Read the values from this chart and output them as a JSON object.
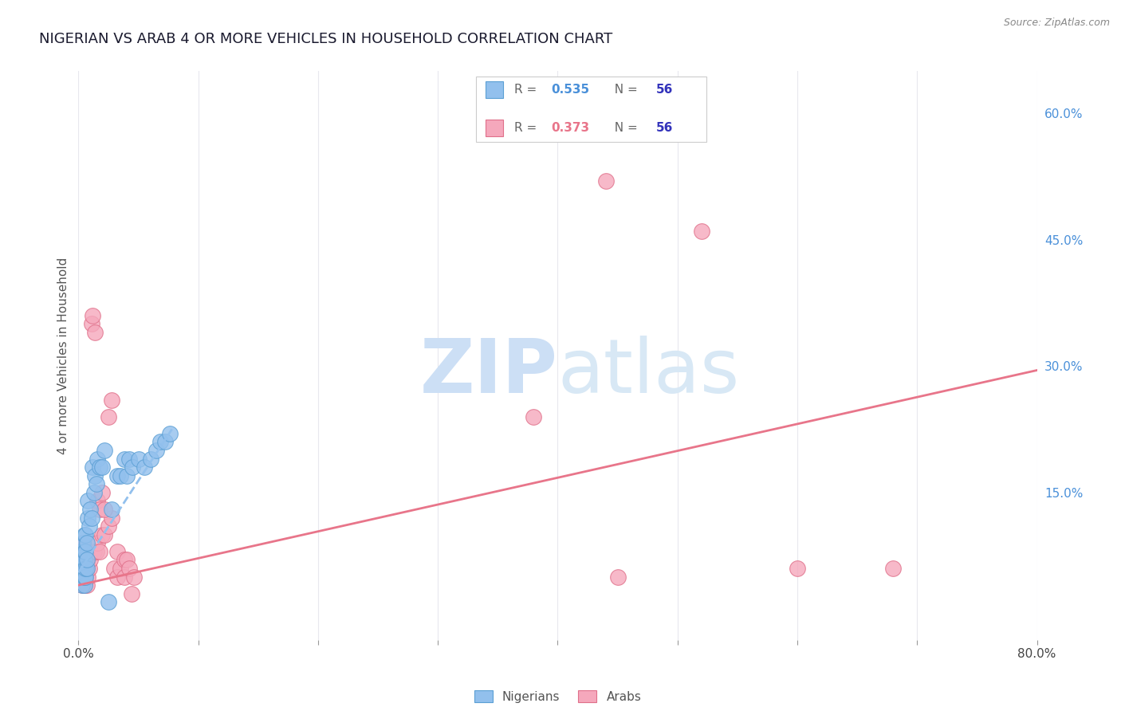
{
  "title": "NIGERIAN VS ARAB 4 OR MORE VEHICLES IN HOUSEHOLD CORRELATION CHART",
  "source": "Source: ZipAtlas.com",
  "ylabel": "4 or more Vehicles in Household",
  "yticks_right": [
    "60.0%",
    "45.0%",
    "30.0%",
    "15.0%"
  ],
  "yticks_right_vals": [
    0.6,
    0.45,
    0.3,
    0.15
  ],
  "nigerian_color": "#92c0ed",
  "nigerian_edge_color": "#5b9fd4",
  "arab_color": "#f5a8bc",
  "arab_edge_color": "#e0708a",
  "nigerian_line_color": "#92c0ed",
  "arab_line_color": "#e8758a",
  "xmin": 0.0,
  "xmax": 0.8,
  "ymin": -0.025,
  "ymax": 0.65,
  "nigerian_scatter_x": [
    0.001,
    0.001,
    0.001,
    0.002,
    0.002,
    0.002,
    0.002,
    0.003,
    0.003,
    0.003,
    0.003,
    0.003,
    0.004,
    0.004,
    0.004,
    0.004,
    0.005,
    0.005,
    0.005,
    0.005,
    0.005,
    0.006,
    0.006,
    0.006,
    0.006,
    0.007,
    0.007,
    0.007,
    0.008,
    0.008,
    0.009,
    0.01,
    0.011,
    0.012,
    0.013,
    0.014,
    0.015,
    0.016,
    0.018,
    0.02,
    0.022,
    0.025,
    0.028,
    0.032,
    0.035,
    0.038,
    0.04,
    0.042,
    0.045,
    0.05,
    0.055,
    0.06,
    0.065,
    0.068,
    0.072,
    0.076
  ],
  "nigerian_scatter_y": [
    0.05,
    0.06,
    0.07,
    0.05,
    0.06,
    0.07,
    0.08,
    0.04,
    0.05,
    0.06,
    0.07,
    0.08,
    0.05,
    0.06,
    0.07,
    0.09,
    0.04,
    0.05,
    0.07,
    0.08,
    0.1,
    0.05,
    0.06,
    0.08,
    0.1,
    0.06,
    0.07,
    0.09,
    0.12,
    0.14,
    0.11,
    0.13,
    0.12,
    0.18,
    0.15,
    0.17,
    0.16,
    0.19,
    0.18,
    0.18,
    0.2,
    0.02,
    0.13,
    0.17,
    0.17,
    0.19,
    0.17,
    0.19,
    0.18,
    0.19,
    0.18,
    0.19,
    0.2,
    0.21,
    0.21,
    0.22
  ],
  "arab_scatter_x": [
    0.001,
    0.001,
    0.001,
    0.002,
    0.002,
    0.002,
    0.003,
    0.003,
    0.003,
    0.004,
    0.004,
    0.004,
    0.005,
    0.005,
    0.005,
    0.006,
    0.006,
    0.007,
    0.007,
    0.008,
    0.008,
    0.009,
    0.01,
    0.011,
    0.012,
    0.013,
    0.014,
    0.015,
    0.016,
    0.018,
    0.02,
    0.022,
    0.025,
    0.028,
    0.03,
    0.032,
    0.016,
    0.018,
    0.02,
    0.022,
    0.025,
    0.028,
    0.032,
    0.035,
    0.038,
    0.038,
    0.04,
    0.042,
    0.044,
    0.046,
    0.38,
    0.44,
    0.45,
    0.52,
    0.6,
    0.68
  ],
  "arab_scatter_y": [
    0.05,
    0.06,
    0.07,
    0.05,
    0.06,
    0.07,
    0.04,
    0.06,
    0.08,
    0.05,
    0.07,
    0.09,
    0.04,
    0.06,
    0.08,
    0.05,
    0.07,
    0.04,
    0.06,
    0.05,
    0.07,
    0.06,
    0.07,
    0.35,
    0.36,
    0.08,
    0.34,
    0.08,
    0.09,
    0.08,
    0.1,
    0.1,
    0.11,
    0.12,
    0.06,
    0.08,
    0.14,
    0.13,
    0.15,
    0.13,
    0.24,
    0.26,
    0.05,
    0.06,
    0.05,
    0.07,
    0.07,
    0.06,
    0.03,
    0.05,
    0.24,
    0.52,
    0.05,
    0.46,
    0.06,
    0.06
  ],
  "nigerian_line_x": [
    0.0,
    0.078
  ],
  "nigerian_line_y": [
    0.055,
    0.225
  ],
  "arab_line_x": [
    0.0,
    0.8
  ],
  "arab_line_y": [
    0.04,
    0.295
  ],
  "xtick_vals": [
    0.0,
    0.1,
    0.2,
    0.3,
    0.4,
    0.5,
    0.6,
    0.7,
    0.8
  ],
  "xtick_show": [
    "0.0%",
    "",
    "",
    "",
    "",
    "",
    "",
    "",
    "80.0%"
  ],
  "watermark_zip": "ZIP",
  "watermark_atlas": "atlas",
  "watermark_color": "#ccdff5",
  "background_color": "#ffffff",
  "grid_color": "#e8e8ee",
  "title_color": "#1a1a2e",
  "source_color": "#888888",
  "ylabel_color": "#555555",
  "right_tick_color": "#4a90d9",
  "legend_r_color": "#666666",
  "legend_val_blue": "#4a90d9",
  "legend_val_pink": "#e8758a",
  "legend_n_color": "#3333bb"
}
